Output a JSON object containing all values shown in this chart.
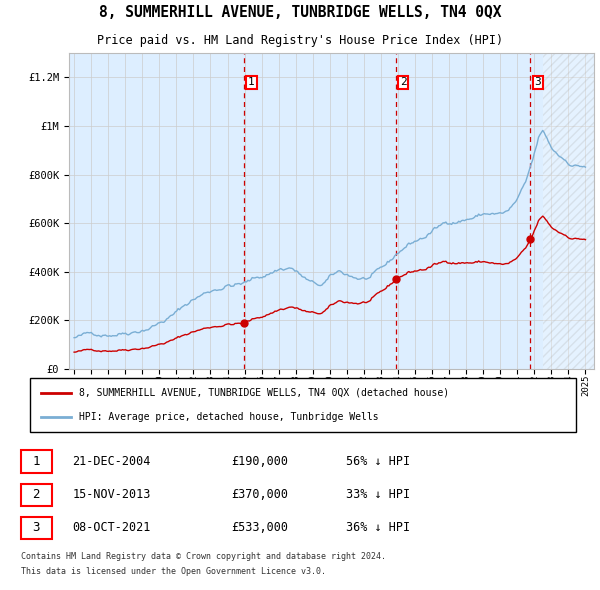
{
  "title": "8, SUMMERHILL AVENUE, TUNBRIDGE WELLS, TN4 0QX",
  "subtitle": "Price paid vs. HM Land Registry's House Price Index (HPI)",
  "ylim": [
    0,
    1300000
  ],
  "yticks": [
    0,
    200000,
    400000,
    600000,
    800000,
    1000000,
    1200000
  ],
  "x_start_year": 1995,
  "x_end_year": 2025,
  "legend_line1": "8, SUMMERHILL AVENUE, TUNBRIDGE WELLS, TN4 0QX (detached house)",
  "legend_line2": "HPI: Average price, detached house, Tunbridge Wells",
  "sale1_date": "21-DEC-2004",
  "sale1_price": 190000,
  "sale1_pct": "56% ↓ HPI",
  "sale1_year": 2004.96,
  "sale2_date": "15-NOV-2013",
  "sale2_price": 370000,
  "sale2_pct": "33% ↓ HPI",
  "sale2_year": 2013.87,
  "sale3_date": "08-OCT-2021",
  "sale3_price": 533000,
  "sale3_pct": "36% ↓ HPI",
  "sale3_year": 2021.77,
  "footer1": "Contains HM Land Registry data © Crown copyright and database right 2024.",
  "footer2": "This data is licensed under the Open Government Licence v3.0.",
  "hpi_color": "#7aaed4",
  "price_color": "#cc0000",
  "bg_color": "#ddeeff",
  "sale_vline_color": "#cc0000",
  "grid_color": "#cccccc"
}
